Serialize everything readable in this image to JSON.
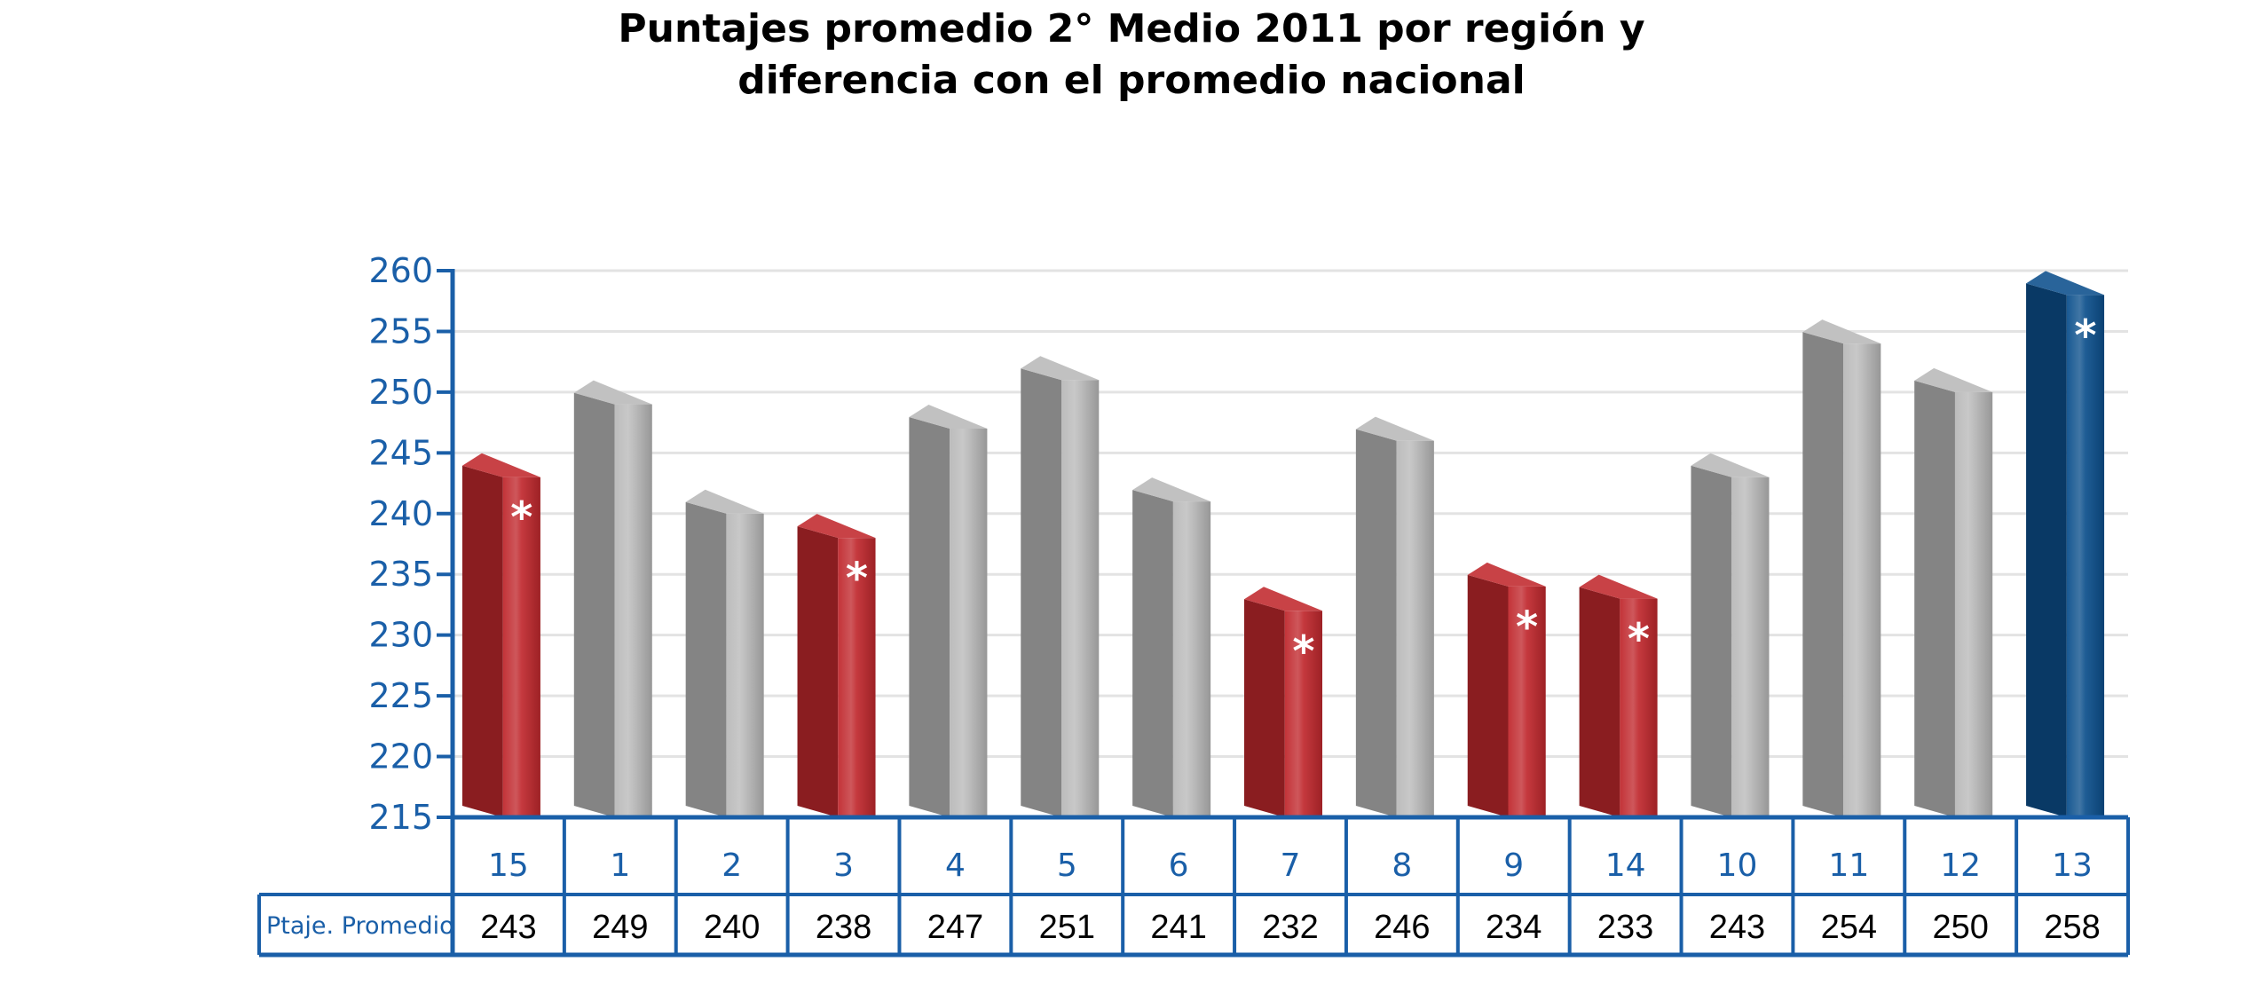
{
  "chart_data": {
    "type": "bar",
    "title_lines": [
      "Puntajes promedio 2° Medio 2011 por región y",
      "diferencia con el promedio nacional"
    ],
    "categories": [
      "15",
      "1",
      "2",
      "3",
      "4",
      "5",
      "6",
      "7",
      "8",
      "9",
      "14",
      "10",
      "11",
      "12",
      "13"
    ],
    "series": [
      {
        "name": "Ptaje. Promedio",
        "values": [
          243,
          249,
          240,
          238,
          247,
          251,
          241,
          232,
          246,
          234,
          233,
          243,
          254,
          250,
          258
        ]
      }
    ],
    "bar_status": [
      "below",
      "none",
      "none",
      "below",
      "none",
      "none",
      "none",
      "below",
      "none",
      "below",
      "below",
      "none",
      "none",
      "none",
      "above"
    ],
    "significance_marker": "*",
    "significant": [
      true,
      false,
      false,
      true,
      false,
      false,
      false,
      true,
      false,
      true,
      true,
      false,
      false,
      false,
      true
    ],
    "ylim": [
      215,
      260
    ],
    "yticks": [
      215,
      220,
      225,
      230,
      235,
      240,
      245,
      250,
      255,
      260
    ],
    "grid": true,
    "table_row_label": "Ptaje. Promedio",
    "colors": {
      "below": "#c0282d",
      "none": "#b8b8b8",
      "above": "#0c4f8c",
      "axis": "#1a5fa8",
      "grid": "#e3e3e3",
      "text": "#000000"
    }
  }
}
